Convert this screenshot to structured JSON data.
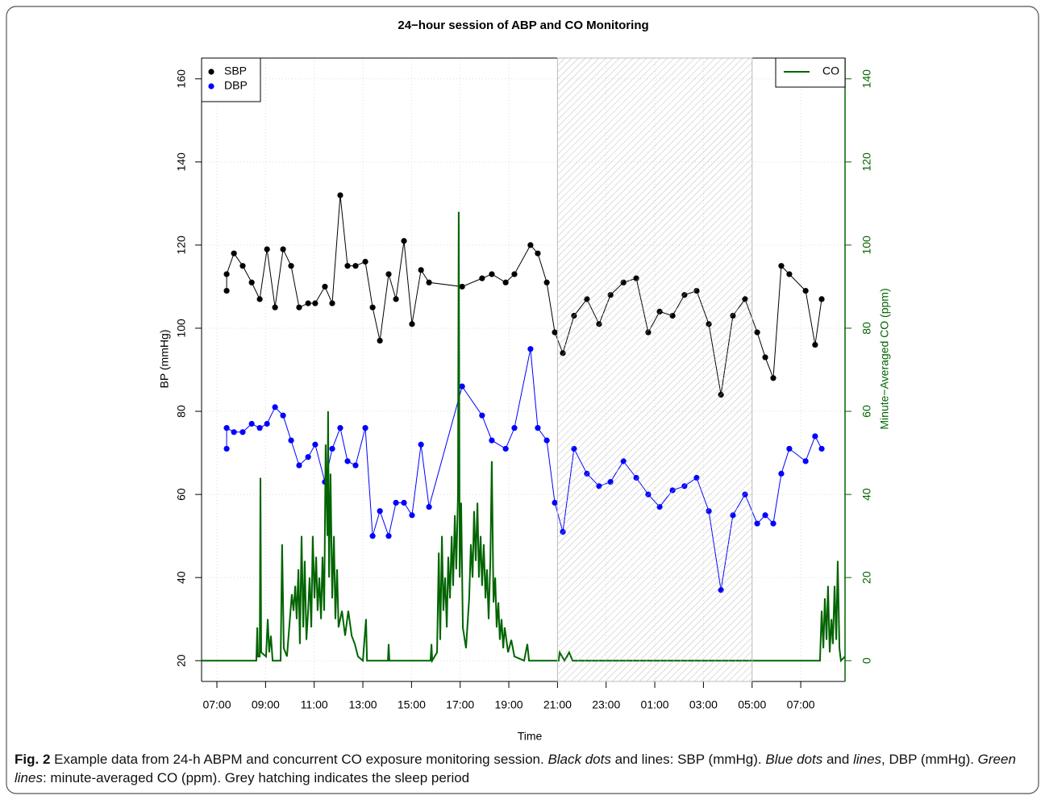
{
  "chart_data": {
    "type": "line",
    "title": "24−hour session of ABP and CO Monitoring",
    "xlabel": "Time",
    "ylabel": "BP (mmHg)",
    "y2label": "Minute−Averaged CO (ppm)",
    "xlim": [
      6.37,
      32.82
    ],
    "xticks": [
      {
        "value": 7,
        "label": "07:00"
      },
      {
        "value": 9,
        "label": "09:00"
      },
      {
        "value": 11,
        "label": "11:00"
      },
      {
        "value": 13,
        "label": "13:00"
      },
      {
        "value": 15,
        "label": "15:00"
      },
      {
        "value": 17,
        "label": "17:00"
      },
      {
        "value": 19,
        "label": "19:00"
      },
      {
        "value": 21,
        "label": "21:00"
      },
      {
        "value": 23,
        "label": "23:00"
      },
      {
        "value": 25,
        "label": "01:00"
      },
      {
        "value": 27,
        "label": "03:00"
      },
      {
        "value": 29,
        "label": "05:00"
      },
      {
        "value": 31,
        "label": "07:00"
      }
    ],
    "ylim": [
      15,
      165
    ],
    "yticks": [
      20,
      40,
      60,
      80,
      100,
      120,
      140,
      160
    ],
    "y2lim": [
      -5,
      145
    ],
    "y2ticks": [
      0,
      20,
      40,
      60,
      80,
      100,
      120,
      140
    ],
    "y2color": "#006400",
    "grid": true,
    "legend": "top-left",
    "legend2": "top-right",
    "sleep_period": [
      21,
      29
    ],
    "series": [
      {
        "name": "SBP",
        "color": "#000000",
        "style": "line-points",
        "x": [
          7.4,
          7.4,
          7.7,
          8.06,
          8.43,
          8.76,
          9.06,
          9.39,
          9.72,
          10.05,
          10.38,
          10.75,
          11.04,
          11.44,
          11.74,
          12.07,
          12.37,
          12.7,
          13.1,
          13.4,
          13.7,
          14.06,
          14.36,
          14.69,
          15.02,
          15.39,
          15.72,
          17.08,
          17.9,
          18.3,
          18.87,
          19.23,
          19.89,
          20.19,
          20.56,
          20.89,
          21.22,
          21.68,
          22.21,
          22.71,
          23.18,
          23.71,
          24.24,
          24.73,
          25.2,
          25.73,
          26.22,
          26.72,
          27.22,
          27.72,
          28.21,
          28.71,
          29.21,
          29.54,
          29.87,
          30.2,
          30.53,
          31.2,
          31.59,
          31.86
        ],
        "values": [
          109,
          113,
          118,
          115,
          111,
          107,
          119,
          105,
          119,
          115,
          105,
          106,
          106,
          110,
          106,
          132,
          115,
          115,
          116,
          105,
          97,
          113,
          107,
          121,
          101,
          114,
          111,
          110,
          112,
          113,
          111,
          113,
          120,
          118,
          111,
          99,
          94,
          103,
          107,
          101,
          108,
          111,
          112,
          99,
          104,
          103,
          108,
          109,
          101,
          84,
          103,
          107,
          99,
          93,
          88,
          115,
          113,
          109,
          96,
          107
        ]
      },
      {
        "name": "DBP",
        "color": "#0000ff",
        "style": "line-points",
        "x": [
          7.4,
          7.4,
          7.7,
          8.06,
          8.43,
          8.76,
          9.06,
          9.39,
          9.72,
          10.05,
          10.38,
          10.75,
          11.04,
          11.44,
          11.74,
          12.07,
          12.37,
          12.7,
          13.1,
          13.4,
          13.7,
          14.06,
          14.36,
          14.69,
          15.02,
          15.39,
          15.72,
          17.08,
          17.9,
          18.3,
          18.87,
          19.23,
          19.89,
          20.19,
          20.56,
          20.89,
          21.22,
          21.68,
          22.21,
          22.71,
          23.18,
          23.71,
          24.24,
          24.73,
          25.2,
          25.73,
          26.22,
          26.72,
          27.22,
          27.72,
          28.21,
          28.71,
          29.21,
          29.54,
          29.87,
          30.2,
          30.53,
          31.2,
          31.59,
          31.86
        ],
        "values": [
          71,
          76,
          75,
          75,
          77,
          76,
          77,
          81,
          79,
          73,
          67,
          69,
          72,
          63,
          71,
          76,
          68,
          67,
          76,
          50,
          56,
          50,
          58,
          58,
          55,
          72,
          57,
          86,
          79,
          73,
          71,
          76,
          95,
          76,
          73,
          58,
          51,
          71,
          65,
          62,
          63,
          68,
          64,
          60,
          57,
          61,
          62,
          64,
          56,
          37,
          55,
          60,
          53,
          55,
          53,
          65,
          71,
          68,
          74,
          71
        ]
      },
      {
        "name": "CO",
        "color": "#006400",
        "style": "line",
        "axis": "y2",
        "x": [
          6.37,
          8.62,
          8.66,
          8.69,
          8.76,
          8.79,
          8.82,
          9.02,
          9.09,
          9.15,
          9.22,
          9.29,
          9.62,
          9.68,
          9.75,
          9.88,
          10.08,
          10.15,
          10.22,
          10.28,
          10.35,
          10.41,
          10.48,
          10.55,
          10.61,
          10.68,
          10.75,
          10.81,
          10.88,
          10.94,
          11.01,
          11.08,
          11.14,
          11.21,
          11.28,
          11.34,
          11.41,
          11.47,
          11.54,
          11.57,
          11.61,
          11.67,
          11.74,
          11.81,
          11.87,
          11.94,
          12.0,
          12.14,
          12.27,
          12.4,
          12.54,
          12.67,
          12.8,
          13.0,
          13.13,
          13.17,
          14.03,
          14.06,
          14.09,
          15.78,
          15.82,
          15.85,
          16.05,
          16.12,
          16.18,
          16.25,
          16.31,
          16.38,
          16.45,
          16.51,
          16.58,
          16.65,
          16.71,
          16.78,
          16.84,
          16.91,
          16.94,
          16.98,
          17.04,
          17.11,
          17.24,
          17.37,
          17.44,
          17.51,
          17.57,
          17.64,
          17.71,
          17.77,
          17.84,
          17.9,
          17.97,
          18.04,
          18.1,
          18.17,
          18.24,
          18.3,
          18.37,
          18.44,
          18.5,
          18.57,
          18.63,
          18.7,
          18.77,
          18.83,
          18.97,
          19.1,
          19.23,
          19.63,
          19.76,
          19.83,
          21.05,
          21.09,
          21.19,
          21.29,
          21.48,
          21.62,
          31.79,
          31.86,
          31.93,
          31.99,
          32.06,
          32.12,
          32.19,
          32.26,
          32.32,
          32.39,
          32.46,
          32.52,
          32.59,
          32.65,
          32.82
        ],
        "values": [
          0,
          0,
          8,
          1,
          1,
          44,
          2,
          1,
          10,
          2,
          6,
          0,
          0,
          28,
          3,
          1,
          16,
          12,
          18,
          10,
          22,
          4,
          30,
          8,
          24,
          5,
          12,
          20,
          8,
          30,
          15,
          25,
          12,
          20,
          10,
          25,
          12,
          52,
          30,
          60,
          20,
          45,
          15,
          30,
          10,
          22,
          8,
          12,
          6,
          12,
          6,
          4,
          1,
          0,
          10,
          0,
          0,
          4,
          0,
          0,
          4,
          0,
          2,
          26,
          5,
          30,
          12,
          20,
          8,
          25,
          15,
          30,
          18,
          35,
          22,
          40,
          108,
          20,
          38,
          8,
          3,
          15,
          28,
          20,
          36,
          24,
          38,
          20,
          30,
          18,
          28,
          15,
          22,
          10,
          24,
          48,
          14,
          20,
          8,
          14,
          5,
          10,
          3,
          8,
          2,
          5,
          1,
          0,
          4,
          0,
          0,
          2,
          1,
          0,
          2,
          0,
          0,
          12,
          3,
          15,
          5,
          18,
          2,
          10,
          4,
          18,
          5,
          24,
          3,
          0,
          1
        ]
      }
    ]
  },
  "caption": [
    {
      "text": "Fig. 2",
      "style": "bold"
    },
    {
      "text": " Example data from 24-h ABPM and concurrent CO exposure monitoring session. ",
      "style": "normal"
    },
    {
      "text": "Black dots",
      "style": "italic"
    },
    {
      "text": " and lines: SBP (mmHg). ",
      "style": "normal"
    },
    {
      "text": "Blue dots",
      "style": "italic"
    },
    {
      "text": " and ",
      "style": "normal"
    },
    {
      "text": "lines",
      "style": "italic"
    },
    {
      "text": ", DBP (mmHg). ",
      "style": "normal"
    },
    {
      "text": "Green lines",
      "style": "italic"
    },
    {
      "text": ": minute-averaged CO (ppm). Grey hatching indicates the sleep period",
      "style": "normal"
    }
  ]
}
